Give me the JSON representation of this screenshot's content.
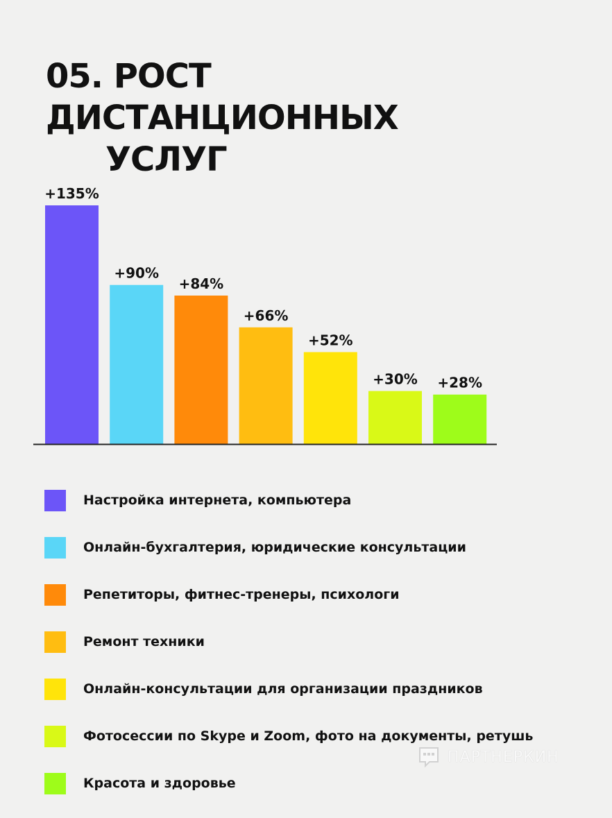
{
  "title_lines": [
    "05. РОСТ ДИСТАНЦИОННЫХ",
    "УСЛУГ"
  ],
  "chart_data": {
    "type": "bar",
    "categories": [
      "Настройка интернета, компьютера",
      "Онлайн-бухгалтерия, юридические консультации",
      "Репетиторы, фитнес-тренеры, психологи",
      "Ремонт техники",
      "Онлайн-консультации для организации праздников",
      "Фотосессии по Skype и Zoom, фото на документы, ретушь",
      "Красота и здоровье"
    ],
    "values": [
      135,
      90,
      84,
      66,
      52,
      30,
      28
    ],
    "data_labels": [
      "+135%",
      "+90%",
      "+84%",
      "+66%",
      "+52%",
      "+30%",
      "+28%"
    ],
    "colors": [
      "#6c55f8",
      "#5ad6f7",
      "#ff8a0a",
      "#ffbd11",
      "#ffe40a",
      "#d9f917",
      "#9efc1a"
    ],
    "ylim": [
      0,
      135
    ],
    "grid": false,
    "legend_position": "bottom"
  },
  "watermark": {
    "text": "ПАРТНЕРКИН",
    "icon": "partnerkin-logo-icon"
  }
}
